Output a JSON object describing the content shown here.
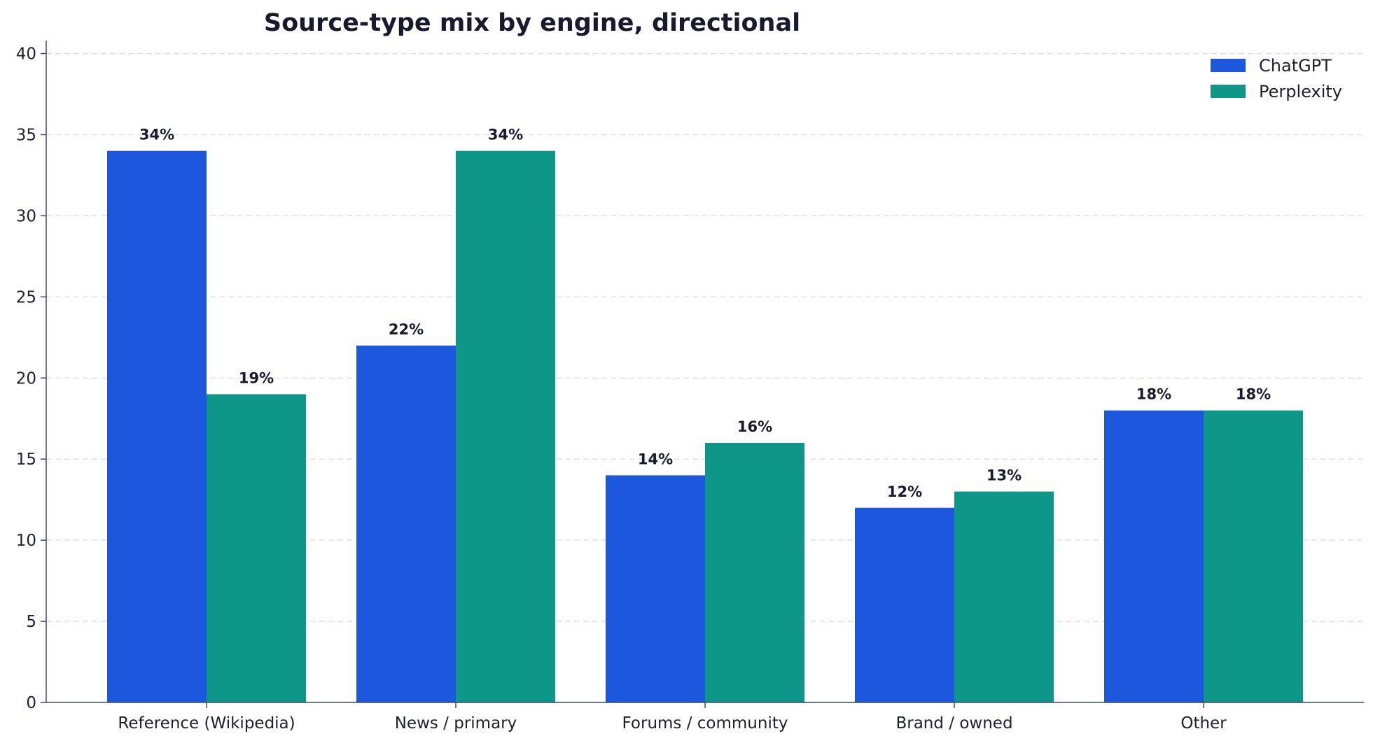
{
  "chart_data": {
    "type": "bar",
    "title": "Source-type mix by engine, directional",
    "xlabel": "",
    "ylabel": "",
    "categories": [
      "Reference (Wikipedia)",
      "News / primary",
      "Forums / community",
      "Brand / owned",
      "Other"
    ],
    "series": [
      {
        "name": "ChatGPT",
        "color": "#1c57dd",
        "values": [
          34,
          22,
          14,
          12,
          18
        ],
        "labels": [
          "34%",
          "22%",
          "14%",
          "12%",
          "18%"
        ]
      },
      {
        "name": "Perplexity",
        "color": "#0e9689",
        "values": [
          19,
          34,
          16,
          13,
          18
        ],
        "labels": [
          "19%",
          "34%",
          "16%",
          "13%",
          "18%"
        ]
      }
    ],
    "ylim": [
      0,
      40.8
    ],
    "yticks": [
      0,
      5,
      10,
      15,
      20,
      25,
      30,
      35,
      40
    ],
    "grid": true,
    "legend": "top-right"
  }
}
